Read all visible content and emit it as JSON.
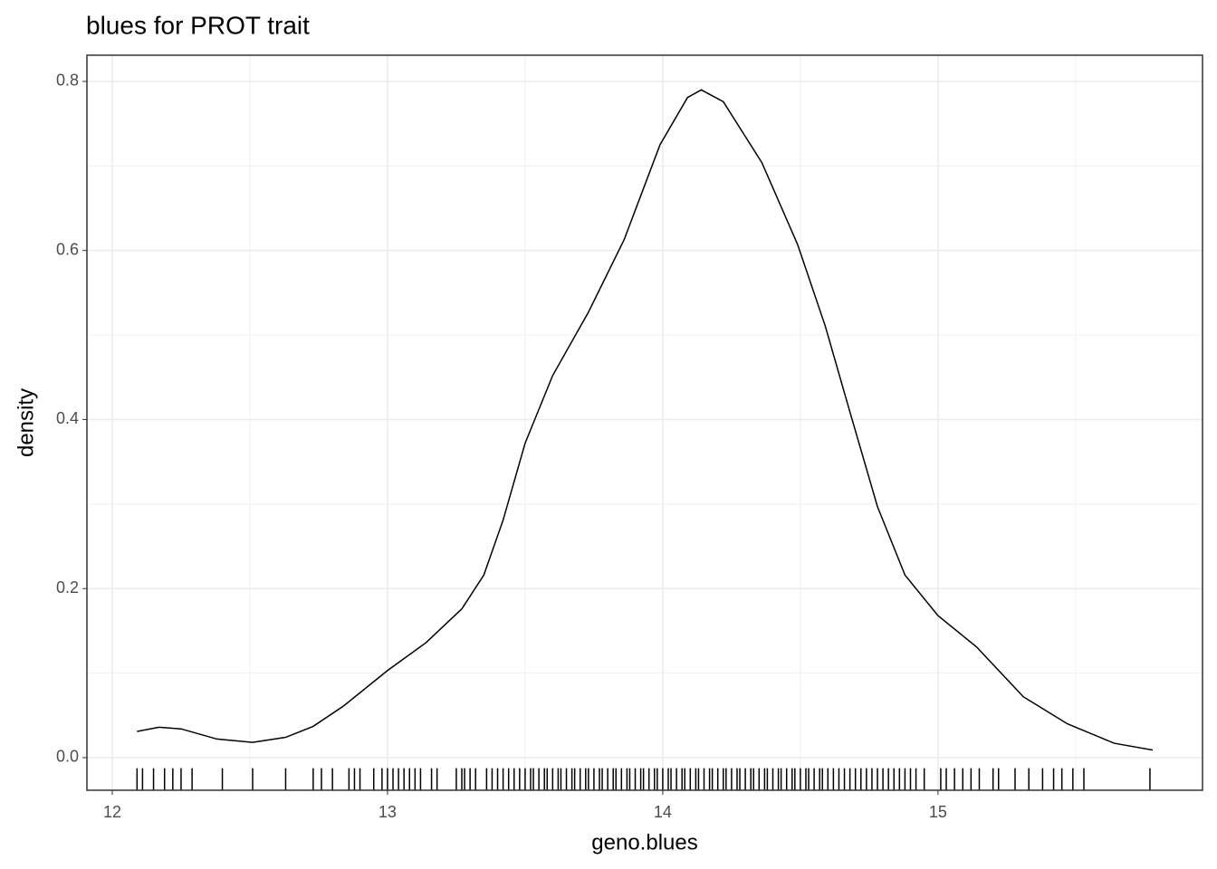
{
  "chart_data": {
    "type": "density",
    "title": "blues for PROT trait",
    "x_label": "geno.blues",
    "y_label": "density",
    "x": [
      12.09,
      12.17,
      12.25,
      12.38,
      12.51,
      12.63,
      12.73,
      12.84,
      13.0,
      13.14,
      13.27,
      13.35,
      13.42,
      13.5,
      13.6,
      13.73,
      13.86,
      13.99,
      14.09,
      14.14,
      14.22,
      14.36,
      14.49,
      14.59,
      14.68,
      14.78,
      14.88,
      15.0,
      15.14,
      15.31,
      15.47,
      15.64,
      15.78
    ],
    "values": [
      0.031,
      0.036,
      0.034,
      0.022,
      0.018,
      0.024,
      0.037,
      0.061,
      0.103,
      0.136,
      0.176,
      0.216,
      0.281,
      0.372,
      0.452,
      0.527,
      0.613,
      0.725,
      0.781,
      0.79,
      0.776,
      0.704,
      0.607,
      0.511,
      0.409,
      0.297,
      0.216,
      0.168,
      0.131,
      0.072,
      0.04,
      0.017,
      0.009
    ],
    "rug": [
      12.09,
      12.11,
      12.15,
      12.19,
      12.22,
      12.25,
      12.29,
      12.4,
      12.51,
      12.63,
      12.73,
      12.76,
      12.8,
      12.86,
      12.88,
      12.9,
      12.95,
      12.98,
      13.0,
      13.02,
      13.04,
      13.06,
      13.08,
      13.1,
      13.12,
      13.16,
      13.18,
      13.25,
      13.27,
      13.28,
      13.3,
      13.32,
      13.36,
      13.38,
      13.4,
      13.42,
      13.44,
      13.46,
      13.48,
      13.5,
      13.52,
      13.53,
      13.55,
      13.57,
      13.58,
      13.6,
      13.62,
      13.63,
      13.65,
      13.67,
      13.68,
      13.7,
      13.72,
      13.73,
      13.75,
      13.77,
      13.78,
      13.8,
      13.82,
      13.83,
      13.85,
      13.87,
      13.88,
      13.9,
      13.92,
      13.93,
      13.95,
      13.97,
      13.98,
      14.0,
      14.02,
      14.03,
      14.05,
      14.07,
      14.08,
      14.1,
      14.12,
      14.13,
      14.15,
      14.17,
      14.18,
      14.2,
      14.22,
      14.23,
      14.25,
      14.27,
      14.28,
      14.3,
      14.32,
      14.33,
      14.35,
      14.37,
      14.38,
      14.4,
      14.42,
      14.43,
      14.45,
      14.47,
      14.48,
      14.5,
      14.52,
      14.53,
      14.55,
      14.57,
      14.58,
      14.6,
      14.62,
      14.64,
      14.66,
      14.68,
      14.7,
      14.72,
      14.74,
      14.76,
      14.78,
      14.8,
      14.82,
      14.84,
      14.86,
      14.88,
      14.9,
      14.92,
      14.95,
      15.01,
      15.03,
      15.06,
      15.09,
      15.12,
      15.15,
      15.2,
      15.22,
      15.28,
      15.33,
      15.38,
      15.42,
      15.45,
      15.49,
      15.53,
      15.77
    ],
    "color": "#000000",
    "xlim": [
      11.908,
      15.961
    ],
    "ylim": [
      -0.0386,
      0.831
    ],
    "xticks": [
      12,
      13,
      14,
      15
    ],
    "yticks": [
      {
        "value": 0,
        "label": "0.0"
      },
      0.2,
      0.4,
      0.6,
      0.8
    ],
    "grid": true
  }
}
